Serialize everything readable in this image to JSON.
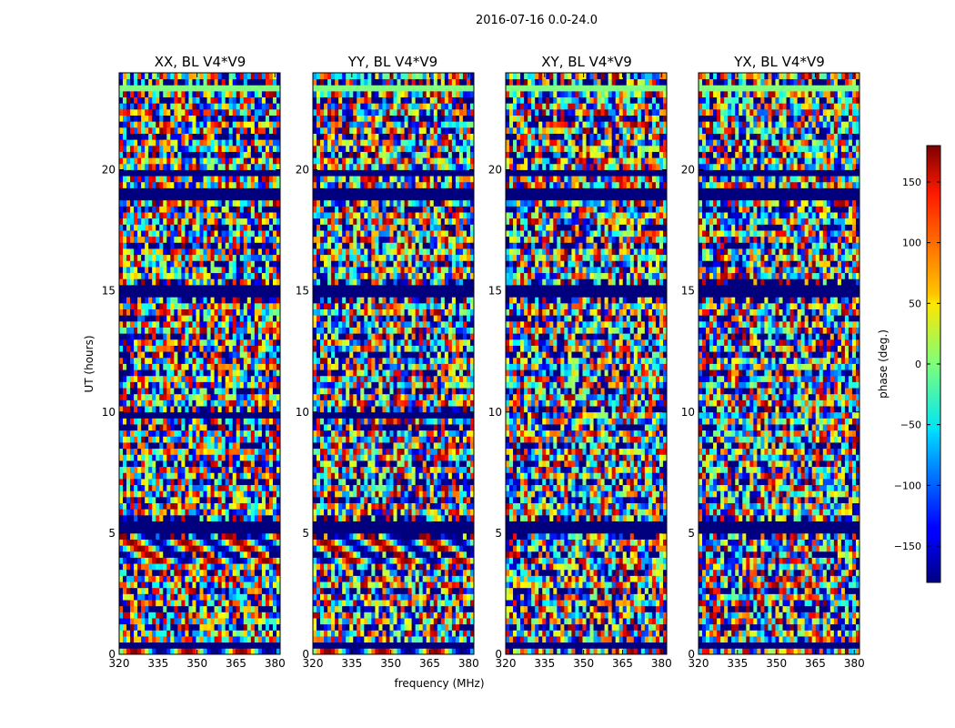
{
  "suptitle": "2016-07-16 0.0-24.0",
  "chart_data": {
    "type": "heatmap",
    "shared": {
      "xlabel": "frequency (MHz)",
      "ylabel": "UT (hours)",
      "xlim": [
        320,
        382
      ],
      "ylim": [
        0,
        24
      ],
      "xticks": [
        320,
        335,
        350,
        365,
        380
      ],
      "yticks": [
        0,
        5,
        10,
        15,
        20
      ],
      "colormap": "jet",
      "rows": 96,
      "cols": 44,
      "value_description": "visibility phase per time/frequency cell (noise-like, not individually recoverable)"
    },
    "colorbar": {
      "label": "phase (deg.)",
      "range": [
        -180,
        180
      ],
      "ticks": [
        -150,
        -100,
        -50,
        0,
        50,
        100,
        150
      ],
      "tick_labels": [
        "−150",
        "−100",
        "−50",
        "0",
        "50",
        "100",
        "150"
      ]
    },
    "panels": [
      {
        "title": "XX, BL V4*V9",
        "flagged_bands": [
          [
            0.26,
            0.47
          ],
          [
            5.04,
            5.61
          ],
          [
            9.84,
            10.0
          ],
          [
            14.8,
            15.2
          ],
          [
            18.7,
            19.2
          ],
          [
            19.7,
            19.9
          ]
        ],
        "constant_bands": [
          [
            21.4,
            21.55
          ],
          [
            23.15,
            23.55
          ]
        ],
        "fringe_bands": [
          [
            0.0,
            0.3
          ],
          [
            2.45,
            2.6
          ],
          [
            3.2,
            3.35
          ],
          [
            3.7,
            5.0
          ]
        ]
      },
      {
        "title": "YY, BL V4*V9",
        "flagged_bands": [
          [
            0.26,
            0.47
          ],
          [
            5.04,
            5.61
          ],
          [
            9.84,
            10.0
          ],
          [
            14.8,
            15.2
          ],
          [
            18.7,
            19.2
          ],
          [
            19.7,
            19.9
          ]
        ],
        "constant_bands": [
          [
            21.4,
            21.55
          ],
          [
            23.15,
            23.55
          ]
        ],
        "fringe_bands": [
          [
            0.0,
            0.3
          ],
          [
            2.45,
            2.6
          ],
          [
            3.2,
            3.35
          ],
          [
            3.7,
            5.0
          ]
        ]
      },
      {
        "title": "XY, BL V4*V9",
        "flagged_bands": [
          [
            0.26,
            0.47
          ],
          [
            5.04,
            5.61
          ],
          [
            14.8,
            15.2
          ],
          [
            18.7,
            19.2
          ],
          [
            19.7,
            19.9
          ]
        ],
        "constant_bands": [
          [
            21.4,
            21.55
          ],
          [
            23.15,
            23.55
          ]
        ],
        "fringe_bands": []
      },
      {
        "title": "YX, BL V4*V9",
        "flagged_bands": [
          [
            0.26,
            0.47
          ],
          [
            5.04,
            5.61
          ],
          [
            14.8,
            15.2
          ],
          [
            18.7,
            19.2
          ],
          [
            19.7,
            19.9
          ]
        ],
        "constant_bands": [
          [
            21.4,
            21.55
          ],
          [
            23.15,
            23.55
          ]
        ],
        "fringe_bands": []
      }
    ]
  }
}
